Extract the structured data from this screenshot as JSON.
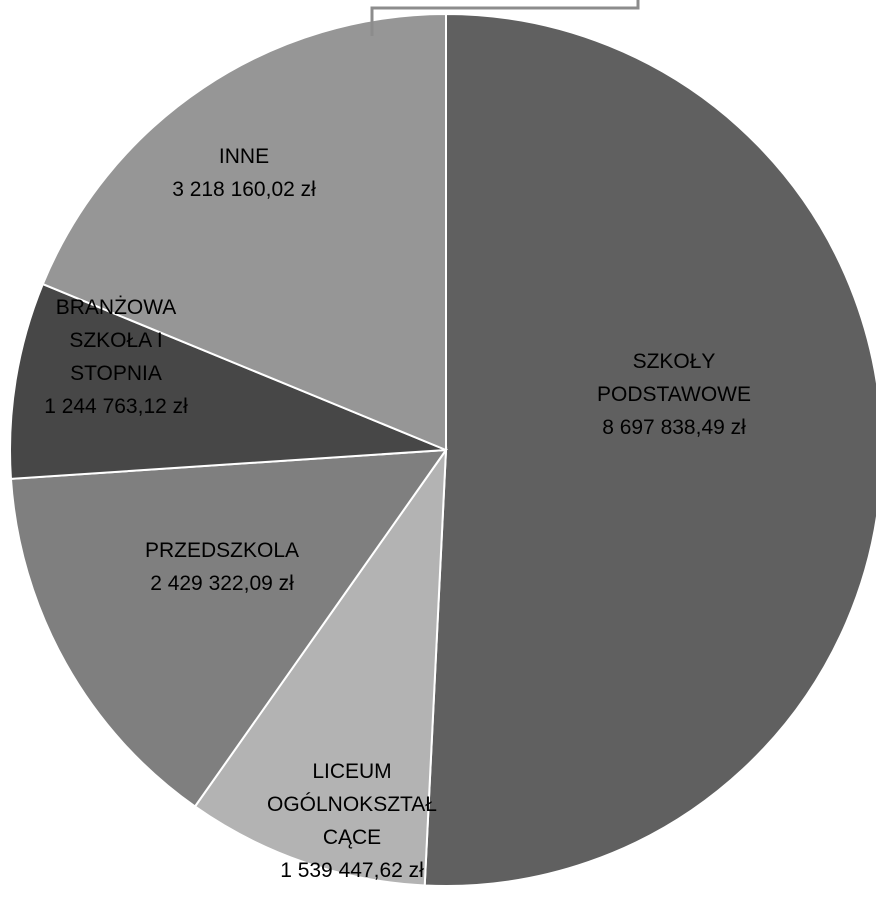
{
  "chart_data": {
    "type": "pie",
    "title": "",
    "slices": [
      {
        "name": "SZKOŁY PODSTAWOWE",
        "label_lines": [
          "SZKOŁY",
          "PODSTAWOWE"
        ],
        "value": 8697838.49,
        "value_label": "8 697 838,49 zł",
        "color": "#606060"
      },
      {
        "name": "LICEUM OGÓLNOKSZTAŁCĄCE",
        "label_lines": [
          "LICEUM",
          "OGÓLNOKSZTAŁ",
          "CĄCE"
        ],
        "value": 1539447.62,
        "value_label": "1 539 447,62 zł",
        "color": "#b3b3b3"
      },
      {
        "name": "PRZEDSZKOLA",
        "label_lines": [
          "PRZEDSZKOLA"
        ],
        "value": 2429322.09,
        "value_label": "2 429 322,09 zł",
        "color": "#7f7f7f"
      },
      {
        "name": "BRANŻOWA SZKOŁA I STOPNIA",
        "label_lines": [
          "BRANŻOWA",
          "SZKOŁA I",
          "STOPNIA"
        ],
        "value": 1244763.12,
        "value_label": "1 244 763,12 zł",
        "color": "#474747"
      },
      {
        "name": "INNE",
        "label_lines": [
          "INNE"
        ],
        "value": 3218160.02,
        "value_label": "3 218 160,02 zł",
        "color": "#969696"
      }
    ],
    "start_angle_deg": 0,
    "direction": "clockwise",
    "slice_border_color": "#ffffff",
    "leader_line_color": "#8c8c8c"
  }
}
